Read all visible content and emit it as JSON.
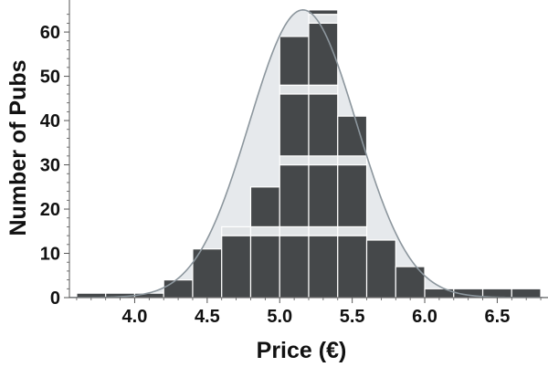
{
  "chart_data": {
    "type": "bar",
    "xlabel": "Price (€)",
    "ylabel": "Number of Pubs",
    "xlim": [
      3.55,
      6.85
    ],
    "ylim": [
      0,
      66
    ],
    "x_ticks": [
      "4.0",
      "4.5",
      "5.0",
      "5.5",
      "6.0",
      "6.5"
    ],
    "y_ticks": [
      "0",
      "10",
      "20",
      "30",
      "40",
      "50",
      "60"
    ],
    "bin_width": 0.2,
    "bins": [
      {
        "x0": 3.6,
        "x1": 3.8,
        "values": [
          1
        ]
      },
      {
        "x0": 3.8,
        "x1": 4.0,
        "values": [
          1
        ]
      },
      {
        "x0": 4.0,
        "x1": 4.2,
        "values": [
          1
        ]
      },
      {
        "x0": 4.2,
        "x1": 4.4,
        "values": [
          4
        ]
      },
      {
        "x0": 4.4,
        "x1": 4.6,
        "values": [
          11
        ]
      },
      {
        "x0": 4.6,
        "x1": 4.8,
        "values": [
          14,
          2
        ]
      },
      {
        "x0": 4.8,
        "x1": 5.0,
        "values": [
          14,
          2,
          9
        ]
      },
      {
        "x0": 5.0,
        "x1": 5.2,
        "values": [
          14,
          2,
          14,
          2,
          14,
          2,
          11
        ]
      },
      {
        "x0": 5.2,
        "x1": 5.4,
        "values": [
          14,
          2,
          14,
          2,
          14,
          2,
          14,
          2,
          1
        ]
      },
      {
        "x0": 5.4,
        "x1": 5.6,
        "values": [
          14,
          2,
          14,
          2,
          9
        ]
      },
      {
        "x0": 5.6,
        "x1": 5.8,
        "values": [
          13
        ]
      },
      {
        "x0": 5.8,
        "x1": 6.0,
        "values": [
          7
        ]
      },
      {
        "x0": 6.0,
        "x1": 6.2,
        "values": [
          2
        ]
      },
      {
        "x0": 6.2,
        "x1": 6.4,
        "values": [
          2
        ]
      },
      {
        "x0": 6.4,
        "x1": 6.6,
        "values": [
          2
        ]
      },
      {
        "x0": 6.6,
        "x1": 6.8,
        "values": [
          2
        ]
      }
    ],
    "fit_curve": {
      "type": "normal",
      "mean": 5.16,
      "sd": 0.37,
      "peak": 65
    },
    "colors": {
      "bar": "#45484a",
      "bar_light": "#e1e4e6",
      "curve_fill": "#e6e9ec",
      "curve_stroke": "#8c969d",
      "axis": "#555555"
    }
  }
}
